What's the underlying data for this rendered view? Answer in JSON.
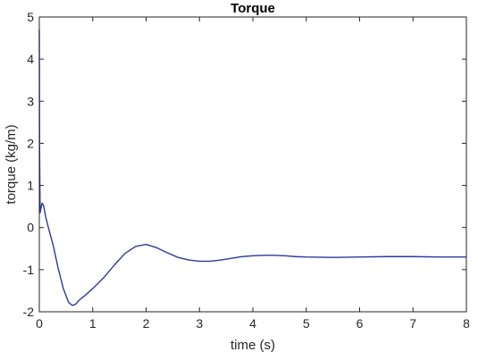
{
  "chart_data": {
    "type": "line",
    "title": "Torque",
    "xlabel": "time (s)",
    "ylabel": "torque (kg/m)",
    "xlim": [
      0,
      8
    ],
    "ylim": [
      -2,
      5
    ],
    "xticks": [
      0,
      1,
      2,
      3,
      4,
      5,
      6,
      7,
      8
    ],
    "yticks": [
      -2,
      -1,
      0,
      1,
      2,
      3,
      4,
      5
    ],
    "grid": false,
    "legend": "none",
    "colors": {
      "line": "#2b3a9c",
      "axes": "#262626",
      "background": "#ffffff"
    },
    "series": [
      {
        "x": [
          0,
          0.005,
          0.015,
          0.03,
          0.05,
          0.08,
          0.12,
          0.18,
          0.26,
          0.35,
          0.45,
          0.55,
          0.62,
          0.68,
          0.75,
          0.85,
          1.0,
          1.2,
          1.4,
          1.6,
          1.8,
          2.0,
          2.2,
          2.4,
          2.6,
          2.8,
          3.0,
          3.2,
          3.4,
          3.6,
          3.8,
          4.0,
          4.2,
          4.4,
          4.6,
          4.8,
          5.0,
          5.5,
          6.0,
          6.5,
          7.0,
          7.5,
          8.0
        ],
        "values": [
          4.7,
          1.8,
          0.35,
          0.45,
          0.58,
          0.52,
          0.25,
          -0.05,
          -0.42,
          -0.95,
          -1.45,
          -1.78,
          -1.85,
          -1.82,
          -1.72,
          -1.62,
          -1.45,
          -1.2,
          -0.9,
          -0.62,
          -0.45,
          -0.4,
          -0.48,
          -0.6,
          -0.71,
          -0.77,
          -0.8,
          -0.8,
          -0.77,
          -0.73,
          -0.69,
          -0.67,
          -0.66,
          -0.66,
          -0.67,
          -0.69,
          -0.7,
          -0.71,
          -0.7,
          -0.69,
          -0.69,
          -0.7,
          -0.7
        ]
      }
    ]
  }
}
